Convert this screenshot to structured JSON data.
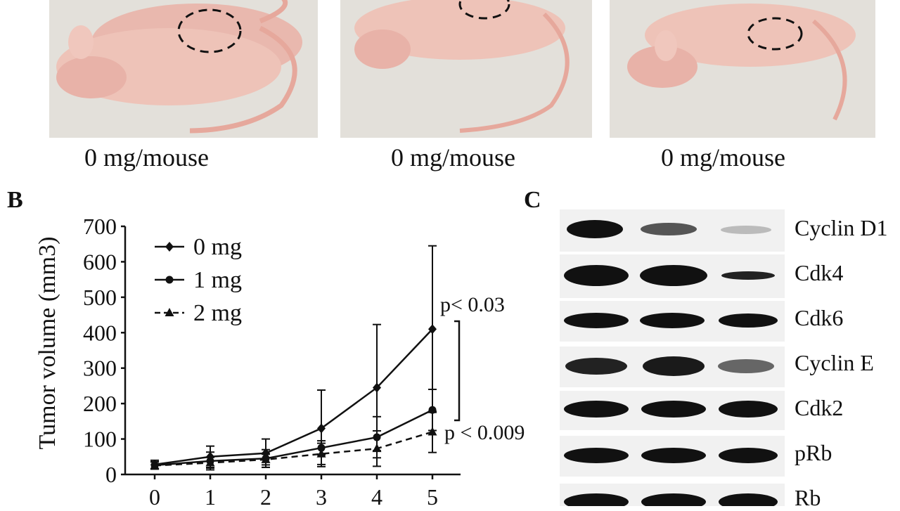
{
  "panelA": {
    "captions": [
      "0 mg/mouse",
      "0 mg/mouse",
      "0 mg/mouse"
    ]
  },
  "panelB": {
    "letter": "B"
  },
  "panelC": {
    "letter": "C",
    "proteins": [
      "Cyclin D1",
      "Cdk4",
      "Cdk6",
      "Cyclin E",
      "Cdk2",
      "pRb",
      "Rb"
    ]
  },
  "chart_data": {
    "type": "line",
    "ylabel": "Tumor volume (mm3)",
    "xlabel": "",
    "ylim": [
      0,
      700
    ],
    "xticks": [
      "0",
      "1",
      "2",
      "3",
      "4",
      "5"
    ],
    "yticks": [
      "0",
      "100",
      "200",
      "300",
      "400",
      "500",
      "600",
      "700"
    ],
    "legend_placement": "top-left",
    "series": [
      {
        "name": "0 mg",
        "marker": "diamond",
        "dash": "solid",
        "x": [
          0,
          1,
          2,
          3,
          4,
          5
        ],
        "y": [
          28,
          50,
          60,
          130,
          245,
          410
        ],
        "err": [
          12,
          30,
          40,
          108,
          178,
          235
        ]
      },
      {
        "name": "1 mg",
        "marker": "circle",
        "dash": "solid",
        "x": [
          0,
          1,
          2,
          3,
          4,
          5
        ],
        "y": [
          26,
          38,
          45,
          75,
          105,
          182
        ],
        "err": [
          10,
          25,
          25,
          20,
          58,
          58
        ]
      },
      {
        "name": "2 mg",
        "marker": "triangle",
        "dash": "dashed",
        "x": [
          0,
          1,
          2,
          3,
          4,
          5
        ],
        "y": [
          25,
          33,
          42,
          58,
          73,
          120
        ],
        "err": [
          10,
          15,
          15,
          30,
          50,
          58
        ]
      }
    ],
    "annotations": [
      "p< 0.03",
      "p < 0.009"
    ]
  }
}
